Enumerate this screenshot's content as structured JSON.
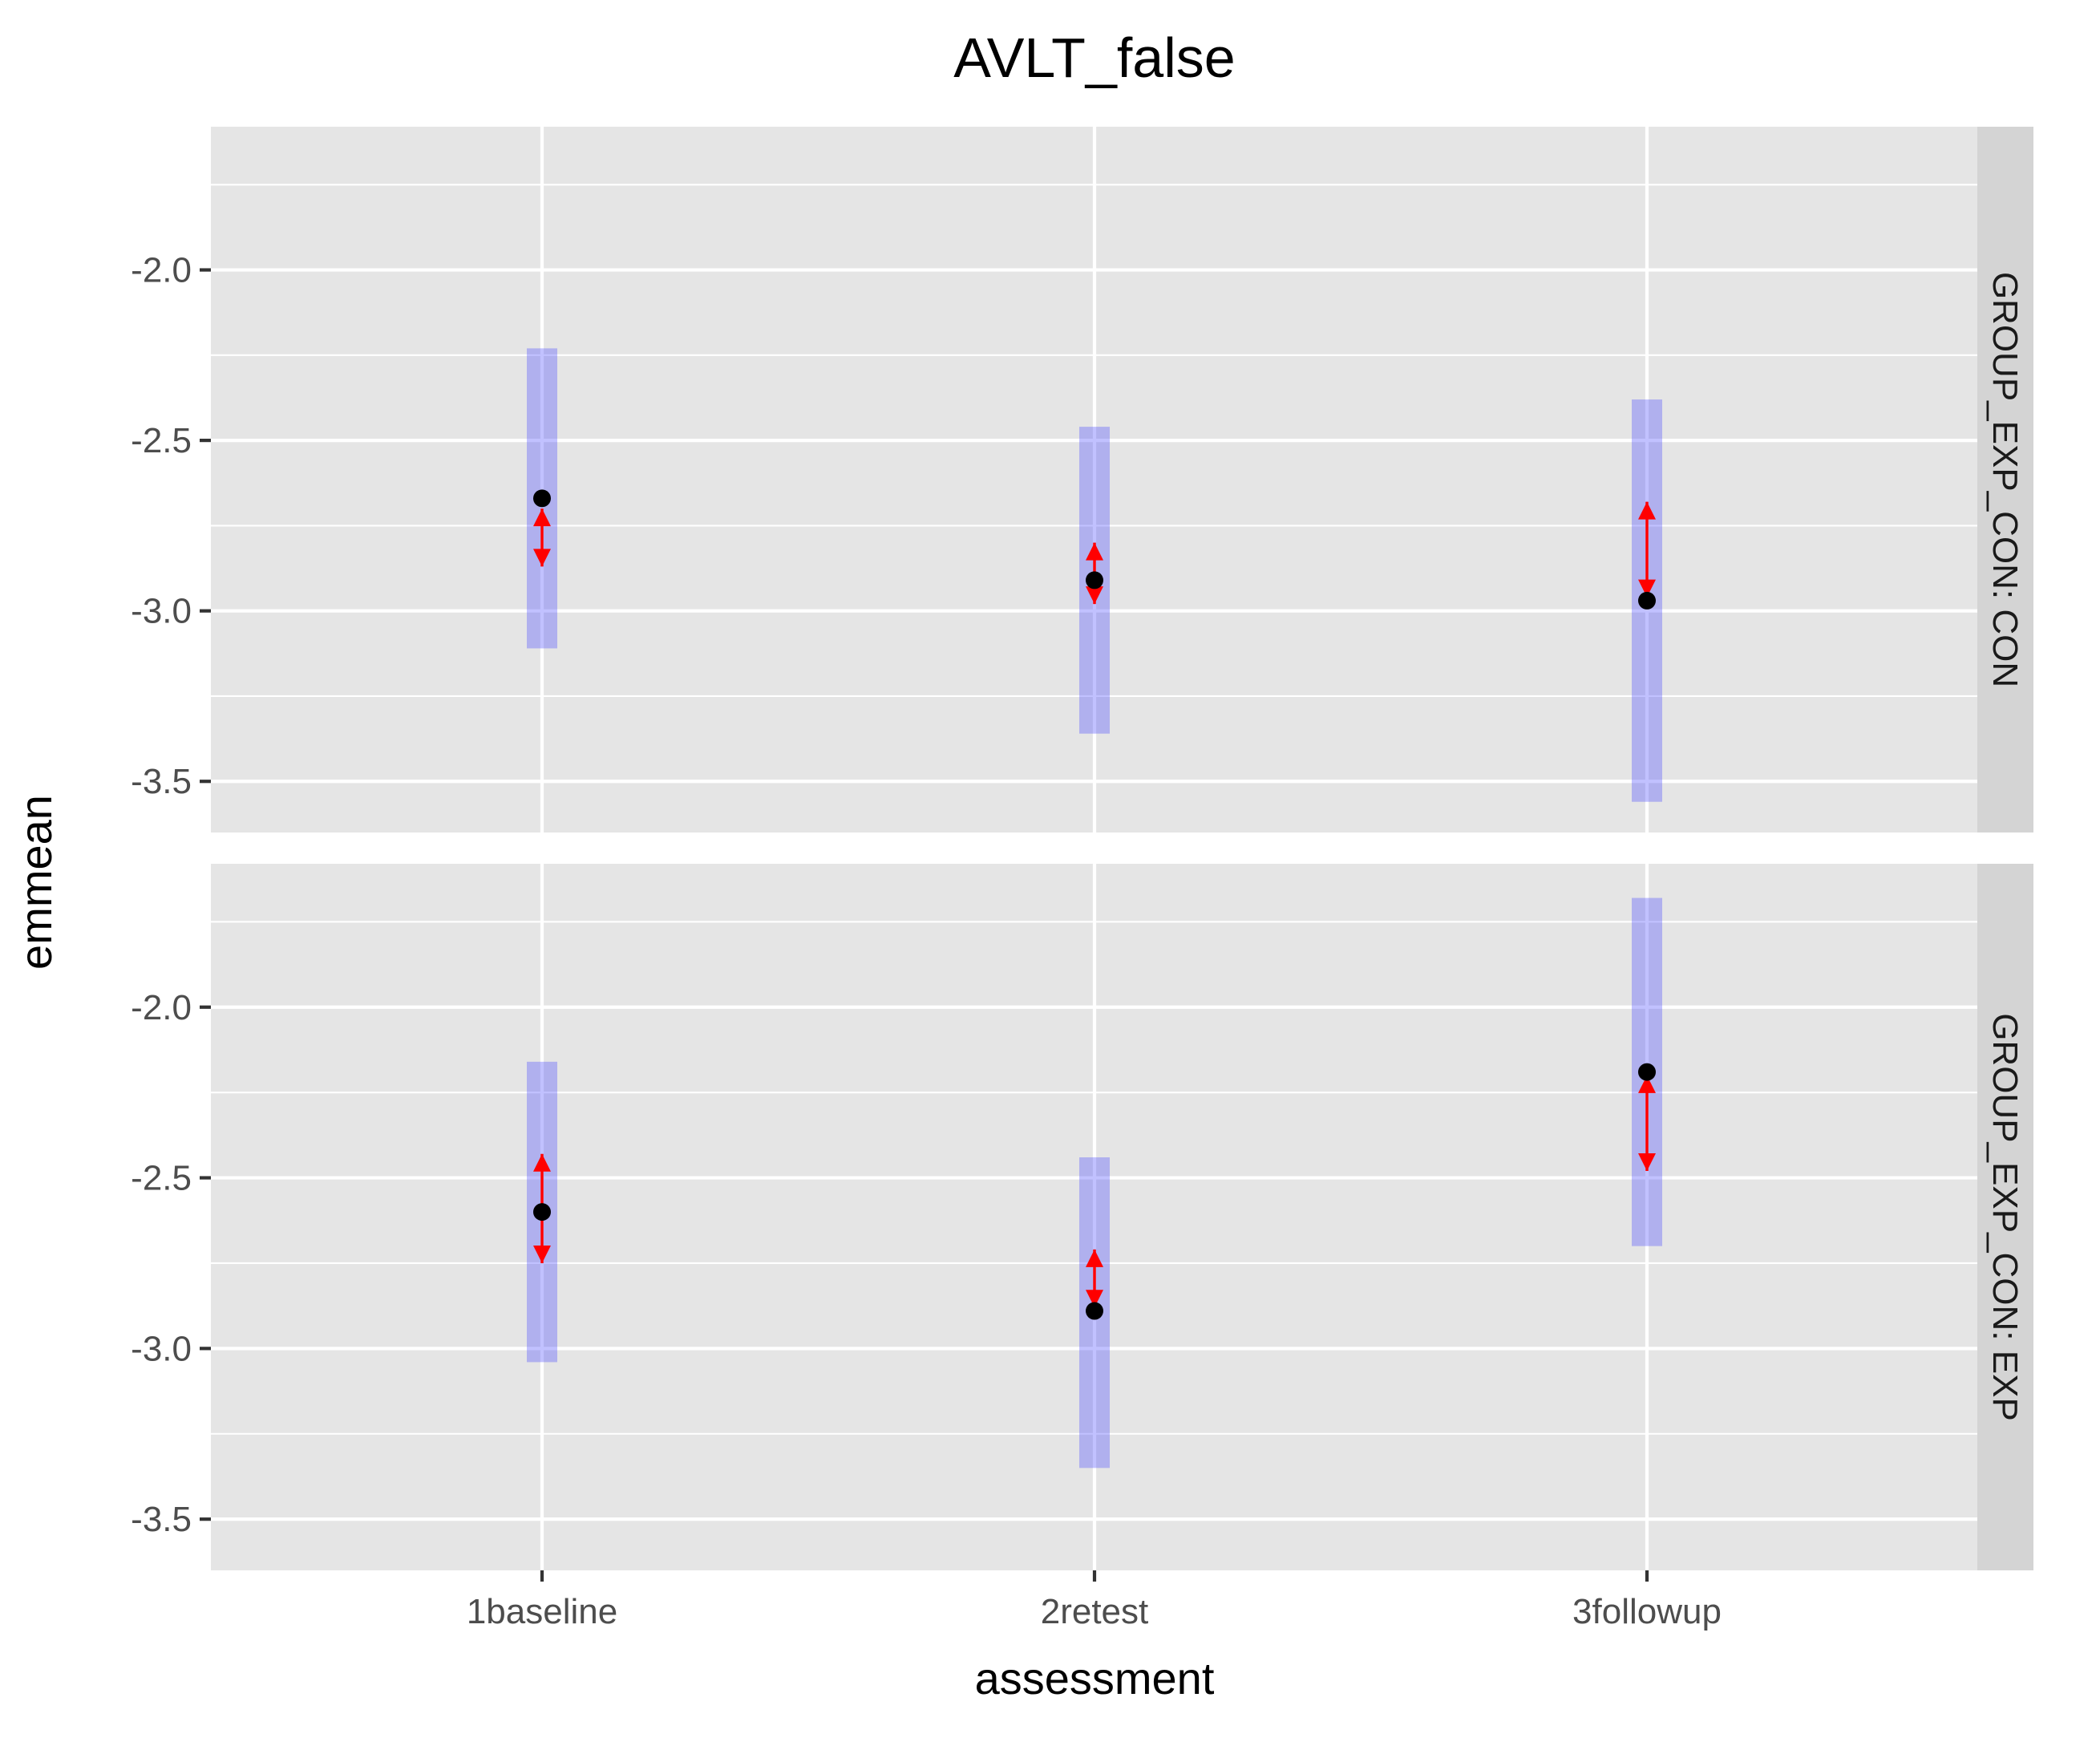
{
  "chart_data": {
    "type": "scatter",
    "title": "AVLT_false",
    "xlabel": "assessment",
    "ylabel": "emmean",
    "categories": [
      "1baseline",
      "2retest",
      "3followup"
    ],
    "ylim": [
      -3.65,
      -1.58
    ],
    "yticks": [
      -2.0,
      -2.5,
      -3.0,
      -3.5
    ],
    "ytick_labels": [
      "-2.0",
      "-2.5",
      "-3.0",
      "-3.5"
    ],
    "grid": true,
    "facets": [
      {
        "label": "GROUP_EXP_CON: CON",
        "emmean": [
          -2.67,
          -2.91,
          -2.97
        ],
        "lower_CL": [
          -3.11,
          -3.36,
          -3.56
        ],
        "upper_CL": [
          -2.23,
          -2.46,
          -2.38
        ],
        "arrows": [
          [
            -2.7,
            -2.87
          ],
          [
            -2.8,
            -2.98
          ],
          [
            -2.96,
            -2.68
          ]
        ],
        "ci_color": "#4d4dff",
        "point_color": "#000000",
        "arrow_color": "#ff0000"
      },
      {
        "label": "GROUP_EXP_CON: EXP",
        "emmean": [
          -2.6,
          -2.89,
          -2.19
        ],
        "lower_CL": [
          -3.04,
          -3.35,
          -2.7
        ],
        "upper_CL": [
          -2.16,
          -2.44,
          -1.68
        ],
        "arrows": [
          [
            -2.43,
            -2.75
          ],
          [
            -2.71,
            -2.88
          ],
          [
            -2.2,
            -2.48
          ]
        ],
        "ci_color": "#4d4dff",
        "point_color": "#000000",
        "arrow_color": "#ff0000"
      }
    ]
  }
}
